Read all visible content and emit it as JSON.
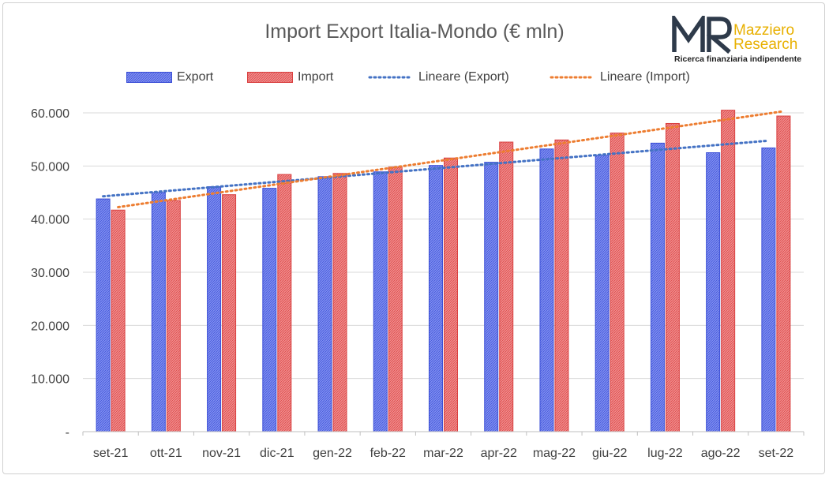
{
  "colors": {
    "export": "#5b6ee8",
    "import": "#e86a6a",
    "trend_export": "#4472c4",
    "trend_import": "#ed7d31",
    "axis_text": "#404040",
    "grid": "#d9d9d9",
    "logo_dark": "#2e3a4a",
    "logo_gold": "#e8b000"
  },
  "logo": {
    "monogram": "MR",
    "name_line1": "Mazziero",
    "name_line2": "Research",
    "tagline": "Ricerca finanziaria indipendente"
  },
  "chart_data": {
    "type": "bar",
    "title": "Import Export Italia-Mondo (€ mln)",
    "categories": [
      "set-21",
      "ott-21",
      "nov-21",
      "dic-21",
      "gen-22",
      "feb-22",
      "mar-22",
      "apr-22",
      "mag-22",
      "giu-22",
      "lug-22",
      "ago-22",
      "set-22"
    ],
    "series": [
      {
        "name": "Export",
        "values": [
          43800,
          45000,
          46100,
          45800,
          48000,
          48900,
          50100,
          50700,
          53200,
          52000,
          54300,
          52500,
          53400
        ]
      },
      {
        "name": "Import",
        "values": [
          41700,
          43500,
          44600,
          48400,
          48600,
          49800,
          51500,
          54500,
          54900,
          56200,
          58000,
          60500,
          59400
        ]
      }
    ],
    "trendlines": [
      {
        "name": "Lineare (Export)",
        "of": "Export",
        "type": "linear"
      },
      {
        "name": "Lineare (Import)",
        "of": "Import",
        "type": "linear"
      }
    ],
    "yticks": [
      "-",
      "10.000",
      "20.000",
      "30.000",
      "40.000",
      "50.000",
      "60.000"
    ],
    "ylim": [
      0,
      60000
    ],
    "grid": true,
    "legend": "top"
  }
}
